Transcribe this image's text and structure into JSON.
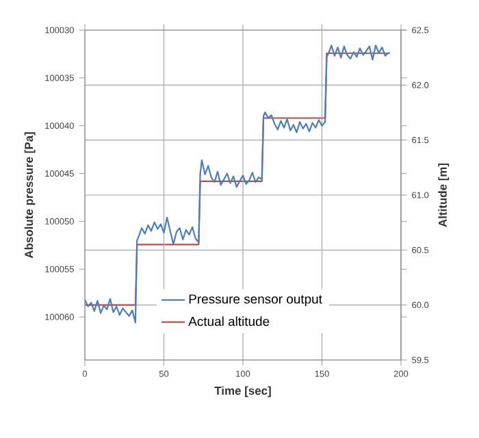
{
  "chart_data": {
    "type": "line",
    "xlabel": "Time [sec]",
    "ylabel": "Absolute pressure [Pa]",
    "y2label": "Altitude [m]",
    "xlim": [
      0,
      200
    ],
    "xticks": [
      0,
      50,
      100,
      150,
      200
    ],
    "ylim": [
      100064.5,
      100030
    ],
    "yticks": [
      100030,
      100035,
      100040,
      100045,
      100050,
      100055,
      100060
    ],
    "y2lim": [
      59.5,
      62.5
    ],
    "y2ticks": [
      59.5,
      {
        "value": 60,
        "label": "60.0"
      },
      60.5,
      {
        "value": 61,
        "label": "61.0"
      },
      61.5,
      {
        "value": 62,
        "label": "62.0"
      },
      62.5
    ],
    "grid": true,
    "legend": "bottom",
    "marker": "none",
    "line_style": "solid",
    "series": [
      {
        "name": "Pressure sensor output",
        "color": "#4a7ebb",
        "axis": "y",
        "x": [
          0,
          2,
          4,
          6,
          8,
          10,
          12,
          14,
          16,
          18,
          20,
          22,
          24,
          26,
          28,
          30,
          32,
          33,
          34,
          36,
          38,
          40,
          42,
          44,
          46,
          48,
          50,
          52,
          54,
          56,
          58,
          60,
          62,
          64,
          66,
          68,
          70,
          72,
          73,
          74,
          76,
          78,
          80,
          82,
          84,
          86,
          88,
          90,
          92,
          94,
          96,
          98,
          100,
          102,
          104,
          106,
          108,
          110,
          112,
          113,
          114,
          116,
          118,
          120,
          122,
          124,
          126,
          128,
          130,
          132,
          134,
          136,
          138,
          140,
          142,
          144,
          146,
          148,
          150,
          152,
          153,
          154,
          156,
          158,
          160,
          162,
          164,
          166,
          168,
          170,
          172,
          174,
          176,
          178,
          180,
          182,
          184,
          186,
          188,
          190,
          192
        ],
        "values": [
          100058.2,
          100058.9,
          100058.5,
          100059.4,
          100058.3,
          100059.6,
          100058.8,
          100059.2,
          100058.1,
          100059.5,
          100058.9,
          100059.8,
          100059.1,
          100059.5,
          100059.9,
          100059.3,
          100060.6,
          100052.0,
          100051.6,
          100050.7,
          100051.3,
          100050.4,
          100051.0,
          100050.1,
          100050.8,
          100050.3,
          100051.2,
          100049.6,
          100051.0,
          100052.4,
          100051.1,
          100050.7,
          100051.9,
          100050.9,
          100051.4,
          100050.6,
          100051.8,
          100052.2,
          100045.0,
          100043.6,
          100045.1,
          100044.2,
          100045.4,
          100045.9,
          100044.8,
          100046.2,
          100045.6,
          100045.0,
          100046.0,
          100045.3,
          100046.4,
          100045.8,
          100045.2,
          100046.1,
          100045.7,
          100044.9,
          100045.9,
          100045.4,
          100045.6,
          100039.0,
          100038.6,
          100039.2,
          100038.9,
          100039.8,
          100040.4,
          100039.5,
          100040.2,
          100039.3,
          100040.5,
          100039.9,
          100040.7,
          100039.6,
          100040.3,
          100039.8,
          100040.6,
          100039.7,
          100040.2,
          100039.4,
          100040.0,
          100039.6,
          100032.8,
          100032.5,
          100031.6,
          100032.7,
          100031.8,
          100032.9,
          100031.7,
          100032.6,
          100033.0,
          100032.3,
          100032.8,
          100031.9,
          100032.6,
          100032.2,
          100031.7,
          100033.1,
          100031.6,
          100032.4,
          100031.8,
          100032.7,
          100032.4
        ]
      },
      {
        "name": "Actual altitude",
        "color": "#be4b48",
        "axis": "y2",
        "x": [
          0,
          32,
          33,
          72,
          73,
          112,
          113,
          152,
          153,
          193
        ],
        "values": [
          60.0,
          60.0,
          60.55,
          60.55,
          61.125,
          61.125,
          61.7,
          61.7,
          62.29,
          62.29
        ]
      }
    ]
  }
}
